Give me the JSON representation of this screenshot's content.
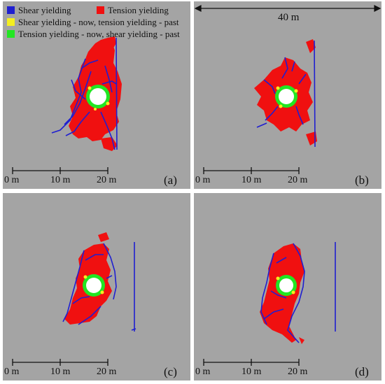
{
  "legend": {
    "shear": {
      "label": "Shear yielding",
      "color": "#1f1fd0"
    },
    "tension": {
      "label": "Tension yielding",
      "color": "#f01010"
    },
    "shear_now_tension_past": {
      "label": "Shear yielding - now, tension yielding - past",
      "color": "#f4ee20"
    },
    "tension_now_shear_past": {
      "label": "Tension yielding - now, shear yielding - past",
      "color": "#22e622"
    }
  },
  "dimension_label": "40 m",
  "scale_bar": {
    "labels": [
      "0 m",
      "10 m",
      "20 m"
    ]
  },
  "panels": [
    {
      "id": "a",
      "label": "(a)"
    },
    {
      "id": "b",
      "label": "(b)"
    },
    {
      "id": "c",
      "label": "(c)"
    },
    {
      "id": "d",
      "label": "(d)"
    }
  ]
}
